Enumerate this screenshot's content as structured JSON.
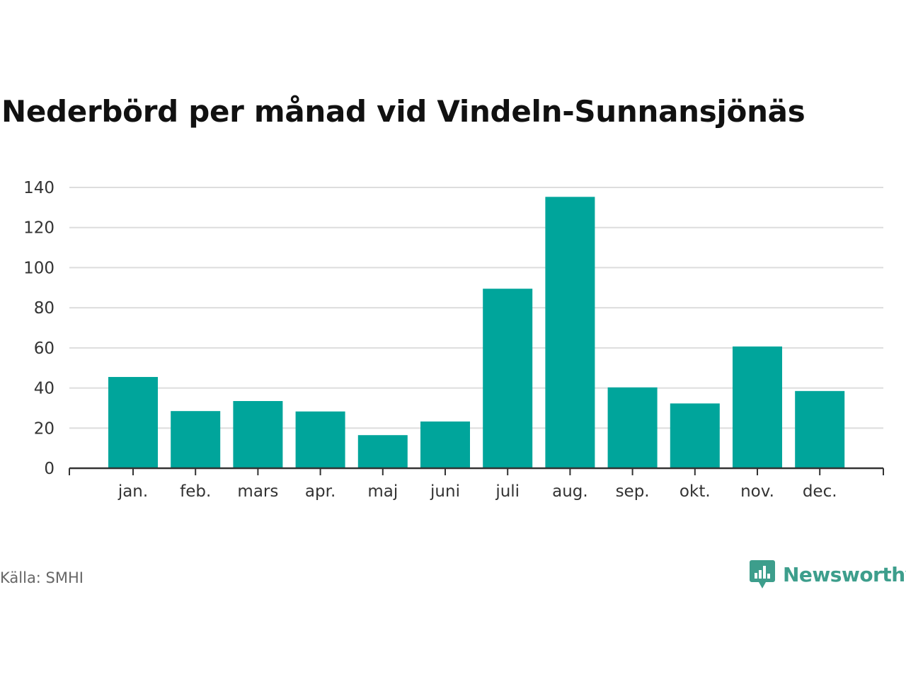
{
  "title": "Nederbörd per månad vid Vindeln-Sunnansjönäs",
  "source": "Källa: SMHI",
  "brand": {
    "name": "Newsworthy",
    "icon": "newsworthy-logo-icon",
    "color": "#3d9e8c"
  },
  "chart_data": {
    "type": "bar",
    "categories": [
      "jan.",
      "feb.",
      "mars",
      "apr.",
      "maj",
      "juni",
      "juli",
      "aug.",
      "sep.",
      "okt.",
      "nov.",
      "dec."
    ],
    "values": [
      45.5,
      28.5,
      33.5,
      28.3,
      16.5,
      23.3,
      89.5,
      135.3,
      40.3,
      32.3,
      60.7,
      38.5
    ],
    "ylim": [
      0,
      140
    ],
    "yticks": [
      0,
      20,
      40,
      60,
      80,
      100,
      120,
      140
    ],
    "grid": true,
    "bar_color": "#00a59b",
    "xlabel": "",
    "ylabel": ""
  }
}
